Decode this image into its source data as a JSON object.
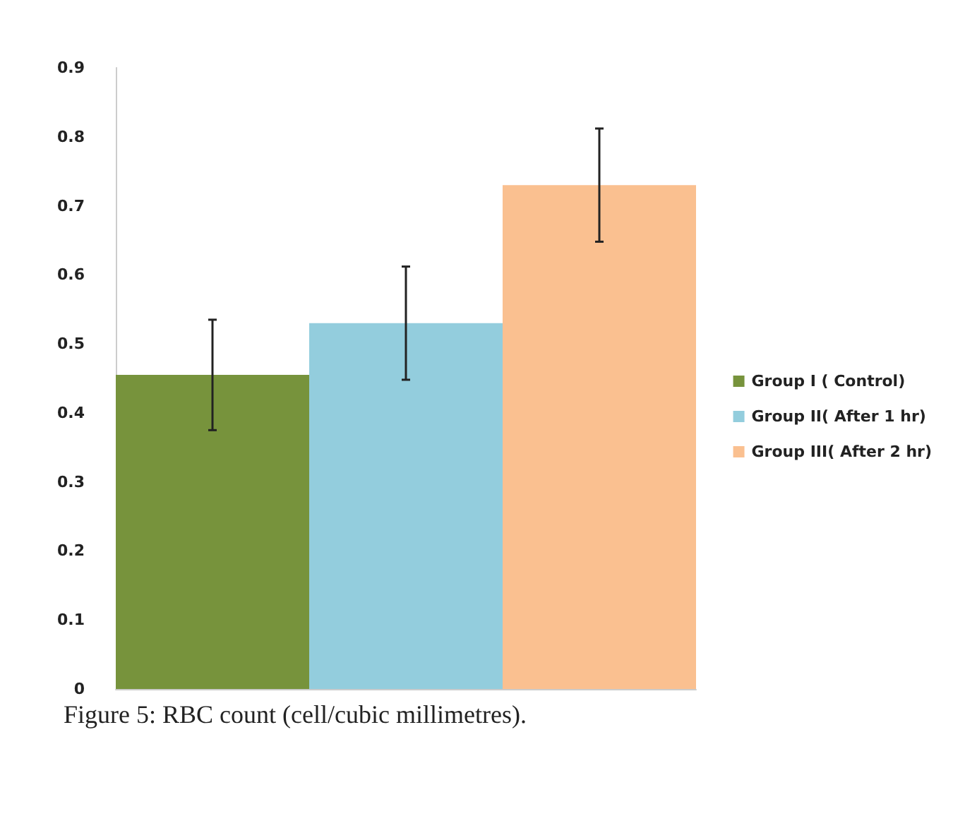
{
  "chart_data": {
    "type": "bar",
    "title": "Figure 5: RBC count (cell/cubic millimetres).",
    "categories": [
      null
    ],
    "series": [
      {
        "name": "Group I ( Control)",
        "color": "#77933c",
        "values": [
          0.455
        ],
        "errors": [
          0.08
        ]
      },
      {
        "name": "Group II( After 1 hr)",
        "color": "#93cddd",
        "values": [
          0.53
        ],
        "errors": [
          0.082
        ]
      },
      {
        "name": "Group III( After 2 hr)",
        "color": "#fac090",
        "values": [
          0.73
        ],
        "errors": [
          0.082
        ]
      }
    ],
    "ylim": [
      0,
      0.9
    ],
    "yticks": [
      0,
      0.1,
      0.2,
      0.3,
      0.4,
      0.5,
      0.6,
      0.7,
      0.8,
      0.9
    ],
    "grid": false,
    "legend": "right"
  }
}
